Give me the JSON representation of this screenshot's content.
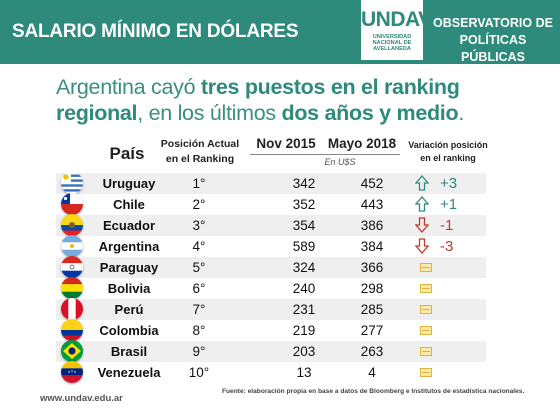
{
  "header": {
    "title": "SALARIO MÍNIMO EN DÓLARES",
    "logo": "UNDAV",
    "logo_sub": [
      "UNIVERSIDAD",
      "NACIONAL DE",
      "AVELLANEDA"
    ],
    "observatorio_line1": "OBSERVATORIO DE",
    "observatorio_line2": "POLÍTICAS PÚBLICAS"
  },
  "headline": {
    "p1": "Argentina cayó ",
    "b1": "tres puestos en el ranking regional",
    "p2": ", en los últimos ",
    "b2": "dos años y medio",
    "p3": "."
  },
  "table": {
    "col_pais": "País",
    "col_pos_1": "Posición Actual",
    "col_pos_2": "en el Ranking",
    "col_nov": "Nov 2015",
    "col_may": "Mayo 2018",
    "unit": "En U$S",
    "col_var_1": "Variación posición",
    "col_var_2": "en el ranking",
    "rows": [
      {
        "country": "Uruguay",
        "pos": "1°",
        "nov": "342",
        "may": "452",
        "var": "+3",
        "trend": "up"
      },
      {
        "country": "Chile",
        "pos": "2°",
        "nov": "352",
        "may": "443",
        "var": "+1",
        "trend": "up"
      },
      {
        "country": "Ecuador",
        "pos": "3°",
        "nov": "354",
        "may": "386",
        "var": "-1",
        "trend": "down"
      },
      {
        "country": "Argentina",
        "pos": "4°",
        "nov": "589",
        "may": "384",
        "var": "-3",
        "trend": "down"
      },
      {
        "country": "Paraguay",
        "pos": "5°",
        "nov": "324",
        "may": "366",
        "var": "",
        "trend": "same"
      },
      {
        "country": "Bolivia",
        "pos": "6°",
        "nov": "240",
        "may": "298",
        "var": "",
        "trend": "same"
      },
      {
        "country": "Perú",
        "pos": "7°",
        "nov": "231",
        "may": "285",
        "var": "",
        "trend": "same"
      },
      {
        "country": "Colombia",
        "pos": "8°",
        "nov": "219",
        "may": "277",
        "var": "",
        "trend": "same"
      },
      {
        "country": "Brasil",
        "pos": "9°",
        "nov": "203",
        "may": "263",
        "var": "",
        "trend": "same"
      },
      {
        "country": "Venezuela",
        "pos": "10°",
        "nov": "13",
        "may": "4",
        "var": "",
        "trend": "same"
      }
    ]
  },
  "footer": {
    "url": "www.undav.edu.ar",
    "source": "Fuente: elaboración propia en base a datos de Bloomberg e Institutos de estadística nacionales."
  },
  "colors": {
    "brand": "#2e8a7a",
    "down": "#c0392b",
    "equal": "#e0b341"
  }
}
